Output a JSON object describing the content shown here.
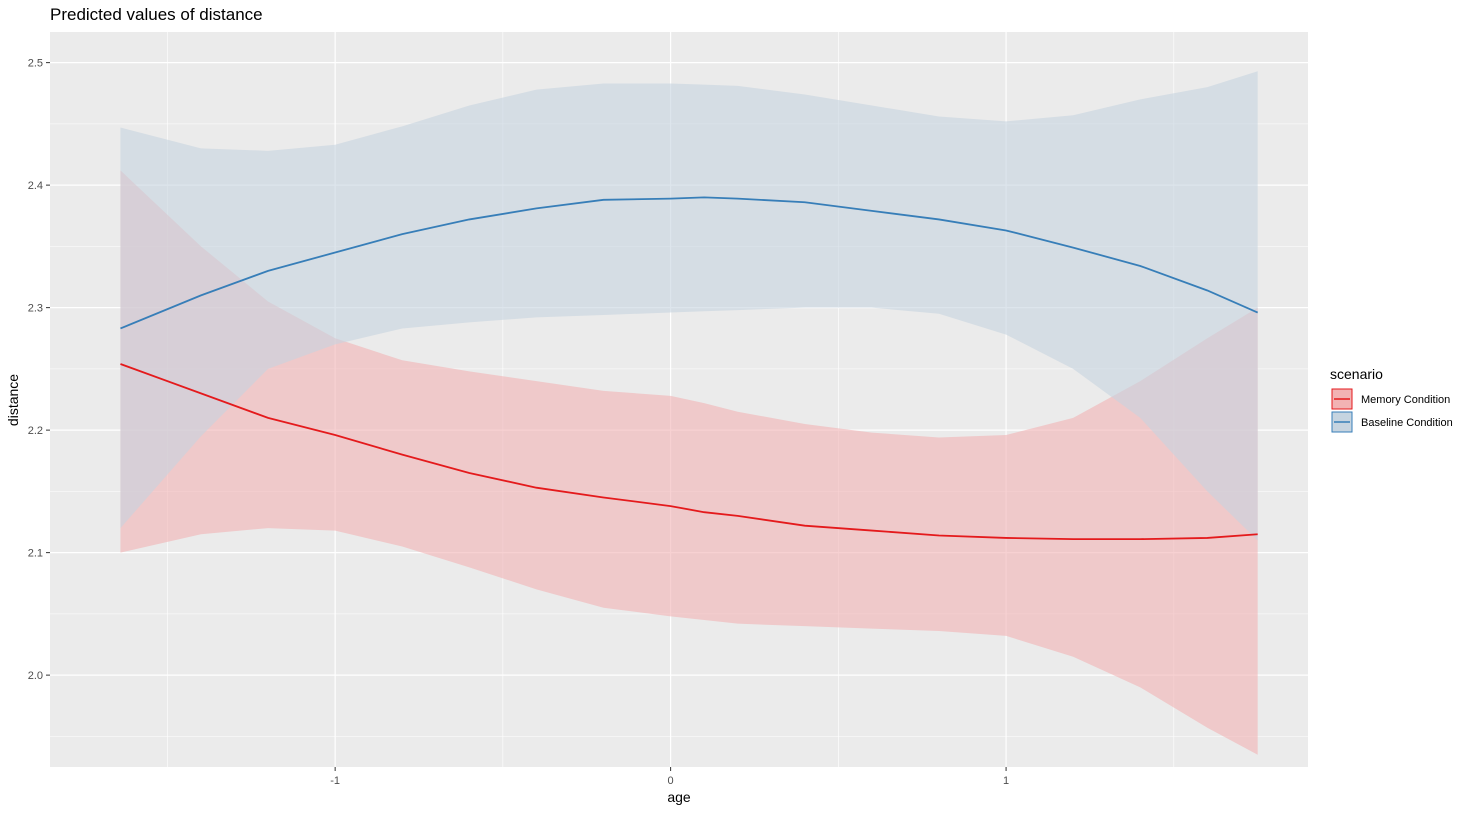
{
  "chart_data": {
    "type": "line",
    "title": "Predicted values of distance",
    "xlabel": "age",
    "ylabel": "distance",
    "xlim": [
      -1.85,
      1.9
    ],
    "ylim": [
      1.925,
      2.525
    ],
    "x_ticks": [
      -1,
      0,
      1
    ],
    "x_tick_labels": [
      "-1",
      "0",
      "1"
    ],
    "y_ticks": [
      2.0,
      2.1,
      2.2,
      2.3,
      2.4,
      2.5
    ],
    "y_tick_labels": [
      "2.0",
      "2.1",
      "2.2",
      "2.3",
      "2.4",
      "2.5"
    ],
    "grid": true,
    "legend": {
      "title": "scenario",
      "position": "right"
    },
    "x": [
      -1.64,
      -1.4,
      -1.2,
      -1.0,
      -0.8,
      -0.6,
      -0.4,
      -0.2,
      0.0,
      0.1,
      0.2,
      0.4,
      0.6,
      0.8,
      1.0,
      1.2,
      1.4,
      1.6,
      1.75
    ],
    "series": [
      {
        "name": "Memory Condition",
        "color": "#e41a1c",
        "fill": "#f2b3b4",
        "values": [
          2.254,
          2.23,
          2.21,
          2.196,
          2.18,
          2.165,
          2.153,
          2.145,
          2.138,
          2.133,
          2.13,
          2.122,
          2.118,
          2.114,
          2.112,
          2.111,
          2.111,
          2.112,
          2.115
        ],
        "lower": [
          2.1,
          2.115,
          2.12,
          2.118,
          2.105,
          2.088,
          2.07,
          2.055,
          2.048,
          2.045,
          2.042,
          2.04,
          2.038,
          2.036,
          2.032,
          2.015,
          1.99,
          1.957,
          1.935
        ],
        "upper": [
          2.412,
          2.35,
          2.305,
          2.275,
          2.257,
          2.248,
          2.24,
          2.232,
          2.228,
          2.222,
          2.215,
          2.205,
          2.198,
          2.194,
          2.196,
          2.21,
          2.24,
          2.275,
          2.3
        ]
      },
      {
        "name": "Baseline Condition",
        "color": "#377eb8",
        "fill": "#c6d4e0",
        "values": [
          2.283,
          2.31,
          2.33,
          2.345,
          2.36,
          2.372,
          2.381,
          2.388,
          2.389,
          2.39,
          2.389,
          2.386,
          2.379,
          2.372,
          2.363,
          2.349,
          2.334,
          2.314,
          2.296
        ],
        "lower": [
          2.12,
          2.195,
          2.25,
          2.27,
          2.283,
          2.288,
          2.292,
          2.294,
          2.296,
          2.297,
          2.298,
          2.3,
          2.3,
          2.295,
          2.278,
          2.25,
          2.21,
          2.15,
          2.11
        ],
        "upper": [
          2.447,
          2.43,
          2.428,
          2.433,
          2.448,
          2.465,
          2.478,
          2.483,
          2.483,
          2.482,
          2.481,
          2.474,
          2.465,
          2.456,
          2.452,
          2.457,
          2.47,
          2.48,
          2.493
        ]
      }
    ]
  }
}
